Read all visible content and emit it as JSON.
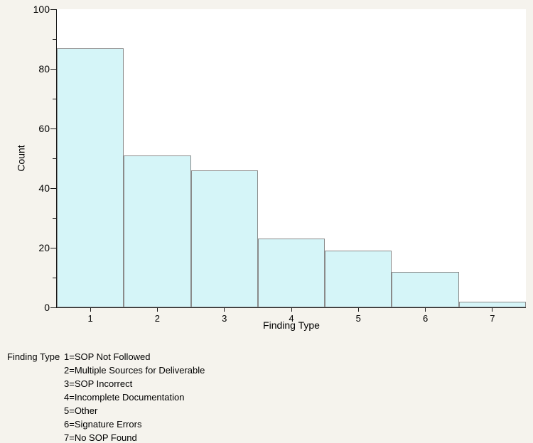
{
  "chart_data": {
    "type": "bar",
    "title": "",
    "categories": [
      "1",
      "2",
      "3",
      "4",
      "5",
      "6",
      "7"
    ],
    "values": [
      87,
      51,
      46,
      23,
      19,
      12,
      2
    ],
    "xlabel": "Finding Type",
    "ylabel": "Count",
    "ylim": [
      0,
      100
    ],
    "y_major_ticks": [
      0,
      20,
      40,
      60,
      80,
      100
    ],
    "y_minor_ticks": [
      10,
      30,
      50,
      70,
      90
    ],
    "grid": false,
    "bars_adjacent": true,
    "legend_position": "below-left"
  },
  "legend": {
    "title": "Finding Type",
    "items": [
      "1=SOP Not Followed",
      "2=Multiple Sources for Deliverable",
      "3=SOP Incorrect",
      "4=Incomplete Documentation",
      "5=Other",
      "6=Signature Errors",
      "7=No SOP Found"
    ]
  },
  "colors": {
    "background": "#F5F3ED",
    "plot_background": "#FFFFFF",
    "bar_fill": "#D5F5F8",
    "bar_border": "#8A8A8A",
    "axis": "#1A1A1A",
    "text": "#000000"
  }
}
